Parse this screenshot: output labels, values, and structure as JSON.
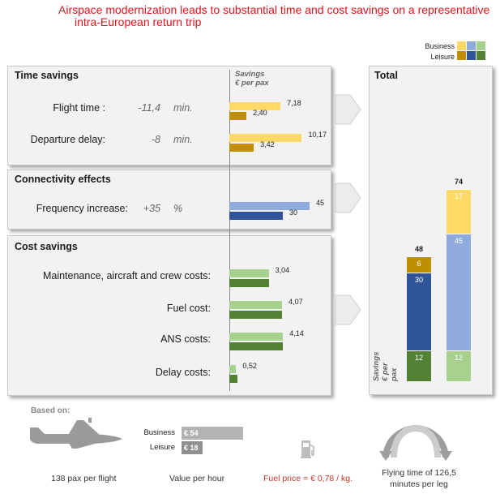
{
  "title": {
    "line1": "Airspace modernization leads to substantial time and cost savings on a representative",
    "line2": "intra-European return trip"
  },
  "legend": {
    "business": "Business",
    "leisure": "Leisure"
  },
  "colors": {
    "time_business": "#ffd966",
    "time_leisure": "#bf8f00",
    "conn_business": "#8faadc",
    "conn_leisure": "#2f5597",
    "cost_business": "#a9d18e",
    "cost_leisure": "#548235"
  },
  "savings_header": {
    "line1": "Savings",
    "line2": "€ per pax"
  },
  "chart_data": [
    {
      "type": "bar",
      "orientation": "horizontal",
      "title": "Time savings",
      "rows": [
        {
          "label": "Flight time :",
          "input_value": "-11,4",
          "input_unit": "min.",
          "business": 7.18,
          "leisure": 2.4,
          "business_label": "7,18",
          "leisure_label": "2,40"
        },
        {
          "label": "Departure delay:",
          "input_value": "-8",
          "input_unit": "min.",
          "business": 10.17,
          "leisure": 3.42,
          "business_label": "10,17",
          "leisure_label": "3,42"
        }
      ]
    },
    {
      "type": "bar",
      "orientation": "horizontal",
      "title": "Connectivity effects",
      "rows": [
        {
          "label": "Frequency increase:",
          "input_value": "+35",
          "input_unit": "%",
          "business": 45,
          "leisure": 30,
          "business_label": "45",
          "leisure_label": "30"
        }
      ]
    },
    {
      "type": "bar",
      "orientation": "horizontal",
      "title": "Cost savings",
      "rows": [
        {
          "label": "Maintenance, aircraft and crew costs:",
          "value": 3.04,
          "value_label": "3,04"
        },
        {
          "label": "Fuel cost:",
          "value": 4.07,
          "value_label": "4,07"
        },
        {
          "label": "ANS costs:",
          "value": 4.14,
          "value_label": "4,14"
        },
        {
          "label": "Delay costs:",
          "value": 0.52,
          "value_label": "0,52"
        }
      ]
    },
    {
      "type": "bar",
      "orientation": "vertical-stacked",
      "title": "Total",
      "ylabel_line1": "Savings",
      "ylabel_line2": "€ per pax",
      "stacks": [
        {
          "total": 48,
          "segments": [
            {
              "value": 12,
              "group": "cost_leisure"
            },
            {
              "value": 30,
              "group": "conn_leisure"
            },
            {
              "value": 6,
              "group": "time_leisure"
            }
          ]
        },
        {
          "total": 74,
          "segments": [
            {
              "value": 12,
              "group": "cost_business"
            },
            {
              "value": 45,
              "group": "conn_business"
            },
            {
              "value": 17,
              "group": "time_business"
            }
          ]
        }
      ]
    }
  ],
  "footer": {
    "based_on": "Based on:",
    "pax": "138 pax per flight",
    "value_hour": "Value per hour",
    "value_rows": [
      {
        "label": "Business",
        "value": "€ 54",
        "amount": 54
      },
      {
        "label": "Leisure",
        "value": "€ 18",
        "amount": 18
      }
    ],
    "fuel": "Fuel price = € 0,78 / kg.",
    "flying_line1": "Flying time of 126,5",
    "flying_line2": "minutes per leg"
  }
}
